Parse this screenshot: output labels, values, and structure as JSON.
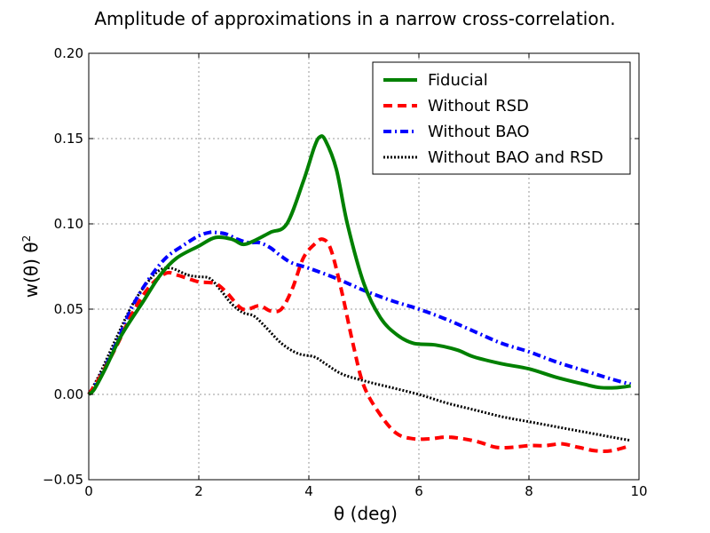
{
  "chart_data": {
    "type": "line",
    "title": "Amplitude of approximations in a narrow cross-correlation.",
    "xlabel": "θ (deg)",
    "ylabel_main": "w(θ) θ",
    "ylabel_sup": "2",
    "xlim": [
      0,
      10
    ],
    "ylim": [
      -0.05,
      0.2
    ],
    "xticks": [
      0,
      2,
      4,
      6,
      8,
      10
    ],
    "xtick_labels": [
      "0",
      "2",
      "4",
      "6",
      "8",
      "10"
    ],
    "yticks": [
      -0.05,
      0.0,
      0.05,
      0.1,
      0.15,
      0.2
    ],
    "ytick_labels": [
      "−0.05",
      "0.00",
      "0.05",
      "0.10",
      "0.15",
      "0.20"
    ],
    "grid": true,
    "legend_position": "top-right",
    "series": [
      {
        "name": "Fiducial",
        "color": "#008000",
        "style": "solid",
        "x": [
          0,
          0.1,
          0.3,
          0.6,
          1.0,
          1.3,
          1.6,
          2.0,
          2.3,
          2.6,
          2.8,
          3.0,
          3.3,
          3.6,
          3.9,
          4.1,
          4.2,
          4.3,
          4.5,
          4.7,
          5.0,
          5.3,
          5.6,
          5.9,
          6.3,
          6.7,
          7.0,
          7.5,
          8.0,
          8.5,
          9.0,
          9.3,
          9.6,
          9.85
        ],
        "y": [
          0.0,
          0.003,
          0.015,
          0.035,
          0.055,
          0.07,
          0.08,
          0.087,
          0.092,
          0.091,
          0.088,
          0.09,
          0.095,
          0.1,
          0.125,
          0.145,
          0.151,
          0.149,
          0.132,
          0.1,
          0.065,
          0.045,
          0.035,
          0.03,
          0.029,
          0.026,
          0.022,
          0.018,
          0.015,
          0.01,
          0.006,
          0.004,
          0.004,
          0.005
        ]
      },
      {
        "name": "Without RSD",
        "color": "#ff0000",
        "style": "dashed",
        "x": [
          0,
          0.2,
          0.5,
          0.8,
          1.1,
          1.4,
          1.6,
          1.8,
          2.0,
          2.3,
          2.5,
          2.8,
          3.1,
          3.3,
          3.5,
          3.7,
          3.9,
          4.1,
          4.25,
          4.4,
          4.6,
          4.8,
          5.0,
          5.3,
          5.6,
          5.9,
          6.2,
          6.5,
          6.8,
          7.1,
          7.4,
          7.7,
          8.0,
          8.3,
          8.6,
          8.9,
          9.2,
          9.5,
          9.85
        ],
        "y": [
          0.0,
          0.01,
          0.028,
          0.048,
          0.063,
          0.071,
          0.07,
          0.068,
          0.066,
          0.065,
          0.06,
          0.05,
          0.052,
          0.049,
          0.05,
          0.062,
          0.08,
          0.088,
          0.091,
          0.085,
          0.06,
          0.03,
          0.005,
          -0.012,
          -0.023,
          -0.026,
          -0.026,
          -0.025,
          -0.026,
          -0.028,
          -0.031,
          -0.031,
          -0.03,
          -0.03,
          -0.029,
          -0.031,
          -0.033,
          -0.033,
          -0.03
        ]
      },
      {
        "name": "Without BAO",
        "color": "#0000ff",
        "style": "dashdot",
        "x": [
          0,
          0.2,
          0.5,
          0.8,
          1.1,
          1.4,
          1.7,
          2.0,
          2.2,
          2.3,
          2.5,
          2.7,
          2.9,
          3.1,
          3.3,
          3.5,
          3.7,
          4.0,
          4.5,
          5.0,
          5.5,
          6.0,
          6.5,
          7.0,
          7.5,
          8.0,
          8.5,
          9.0,
          9.5,
          9.85
        ],
        "y": [
          0.0,
          0.01,
          0.03,
          0.052,
          0.068,
          0.08,
          0.087,
          0.093,
          0.095,
          0.095,
          0.094,
          0.091,
          0.089,
          0.089,
          0.086,
          0.081,
          0.077,
          0.074,
          0.068,
          0.061,
          0.055,
          0.05,
          0.044,
          0.037,
          0.03,
          0.025,
          0.019,
          0.014,
          0.009,
          0.006
        ]
      },
      {
        "name": "Without BAO and RSD",
        "color": "#000000",
        "style": "dotted",
        "x": [
          0,
          0.2,
          0.5,
          0.8,
          1.1,
          1.3,
          1.5,
          1.8,
          2.0,
          2.2,
          2.4,
          2.6,
          2.8,
          3.0,
          3.2,
          3.5,
          3.8,
          4.1,
          4.3,
          4.6,
          5.0,
          5.5,
          6.0,
          6.5,
          7.0,
          7.5,
          8.0,
          8.5,
          9.0,
          9.5,
          9.85
        ],
        "y": [
          0.0,
          0.012,
          0.033,
          0.053,
          0.067,
          0.073,
          0.074,
          0.07,
          0.069,
          0.068,
          0.061,
          0.053,
          0.048,
          0.046,
          0.04,
          0.03,
          0.024,
          0.022,
          0.018,
          0.012,
          0.008,
          0.004,
          0.0,
          -0.005,
          -0.009,
          -0.013,
          -0.016,
          -0.019,
          -0.022,
          -0.025,
          -0.027
        ]
      }
    ]
  }
}
